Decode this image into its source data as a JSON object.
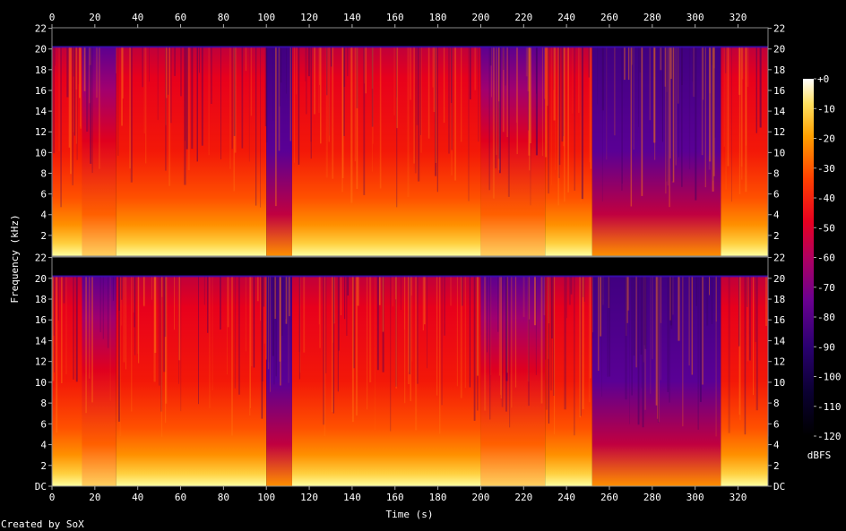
{
  "chart_data": {
    "type": "heatmap",
    "subtype": "spectrogram",
    "channels": 2,
    "xlabel": "Time (s)",
    "ylabel": "Frequency (kHz)",
    "x_ticks": [
      "0",
      "20",
      "40",
      "60",
      "80",
      "100",
      "120",
      "140",
      "160",
      "180",
      "200",
      "220",
      "240",
      "260",
      "280",
      "300",
      "320"
    ],
    "x_tick_values": [
      0,
      20,
      40,
      60,
      80,
      100,
      120,
      140,
      160,
      180,
      200,
      220,
      240,
      260,
      280,
      300,
      320
    ],
    "xlim": [
      0,
      334
    ],
    "y_ticks_top": [
      "22",
      "20",
      "18",
      "16",
      "14",
      "12",
      "10",
      "8",
      "6",
      "4",
      "2"
    ],
    "y_ticks_bottom": [
      "22",
      "20",
      "18",
      "16",
      "14",
      "12",
      "10",
      "8",
      "6",
      "4",
      "2",
      "DC"
    ],
    "y_tick_values_top": [
      22,
      20,
      18,
      16,
      14,
      12,
      10,
      8,
      6,
      4,
      2
    ],
    "y_tick_values_bottom": [
      22,
      20,
      18,
      16,
      14,
      12,
      10,
      8,
      6,
      4,
      2,
      0
    ],
    "ylim": [
      0,
      22.05
    ],
    "content_cutoff_khz": 20.2,
    "colorbar": {
      "label": "dBFS",
      "ticks": [
        "+0",
        "-10",
        "-20",
        "-30",
        "-40",
        "-50",
        "-60",
        "-70",
        "-80",
        "-90",
        "-100",
        "-110",
        "-120"
      ],
      "tick_values": [
        0,
        -10,
        -20,
        -30,
        -40,
        -50,
        -60,
        -70,
        -80,
        -90,
        -100,
        -110,
        -120
      ],
      "range": [
        -120,
        0
      ]
    },
    "segments_s": [
      {
        "from": 0,
        "to": 14,
        "level": "loud"
      },
      {
        "from": 14,
        "to": 30,
        "level": "moderate"
      },
      {
        "from": 30,
        "to": 100,
        "level": "loud"
      },
      {
        "from": 100,
        "to": 112,
        "level": "quiet"
      },
      {
        "from": 112,
        "to": 200,
        "level": "loud"
      },
      {
        "from": 200,
        "to": 230,
        "level": "moderate"
      },
      {
        "from": 230,
        "to": 252,
        "level": "loud"
      },
      {
        "from": 252,
        "to": 312,
        "level": "quiet"
      },
      {
        "from": 312,
        "to": 334,
        "level": "loud"
      }
    ],
    "legend_position": "right",
    "grid": false,
    "footer": "Created by SoX"
  }
}
